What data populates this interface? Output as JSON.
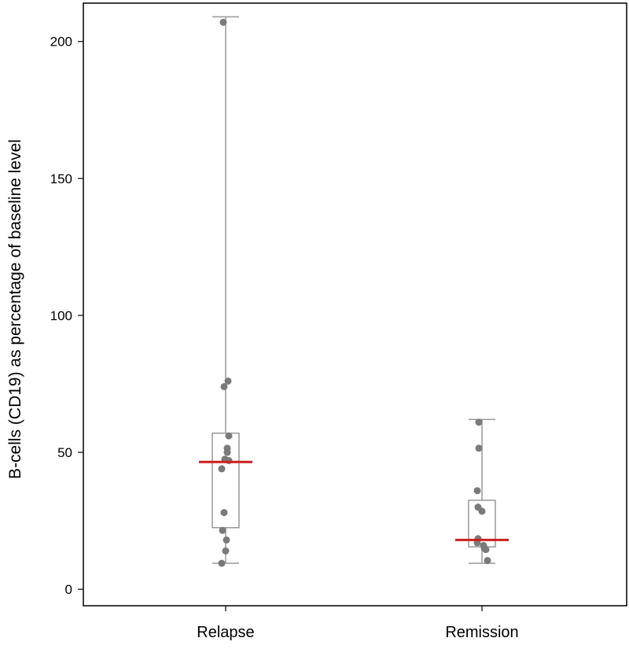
{
  "chart_data": {
    "type": "box",
    "title": "",
    "xlabel": "",
    "ylabel": "B-cells (CD19) as percentage of baseline level",
    "ylim": [
      -6,
      214
    ],
    "yticks": [
      0,
      50,
      100,
      150,
      200
    ],
    "categories": [
      "Relapse",
      "Remission"
    ],
    "boxes": [
      {
        "name": "Relapse",
        "whisker_low": 9.5,
        "q1": 22.5,
        "median": 46.5,
        "q3": 57,
        "whisker_high": 209
      },
      {
        "name": "Remission",
        "whisker_low": 9.5,
        "q1": 15.5,
        "median": 18,
        "q3": 32.5,
        "whisker_high": 62
      }
    ],
    "points": [
      {
        "group": "Relapse",
        "y": 207,
        "jitter": -0.03
      },
      {
        "group": "Relapse",
        "y": 76,
        "jitter": 0.03
      },
      {
        "group": "Relapse",
        "y": 74,
        "jitter": -0.02
      },
      {
        "group": "Relapse",
        "y": 56,
        "jitter": 0.04
      },
      {
        "group": "Relapse",
        "y": 51.5,
        "jitter": 0.02
      },
      {
        "group": "Relapse",
        "y": 50,
        "jitter": 0.02
      },
      {
        "group": "Relapse",
        "y": 47.5,
        "jitter": -0.01
      },
      {
        "group": "Relapse",
        "y": 47,
        "jitter": 0.04
      },
      {
        "group": "Relapse",
        "y": 44,
        "jitter": -0.05
      },
      {
        "group": "Relapse",
        "y": 28,
        "jitter": -0.02
      },
      {
        "group": "Relapse",
        "y": 21.5,
        "jitter": -0.04
      },
      {
        "group": "Relapse",
        "y": 18,
        "jitter": 0.01
      },
      {
        "group": "Relapse",
        "y": 14,
        "jitter": 0.0
      },
      {
        "group": "Relapse",
        "y": 9.5,
        "jitter": -0.05
      },
      {
        "group": "Remission",
        "y": 61,
        "jitter": -0.04
      },
      {
        "group": "Remission",
        "y": 51.5,
        "jitter": -0.04
      },
      {
        "group": "Remission",
        "y": 36,
        "jitter": -0.06
      },
      {
        "group": "Remission",
        "y": 30,
        "jitter": -0.05
      },
      {
        "group": "Remission",
        "y": 28.5,
        "jitter": 0.0
      },
      {
        "group": "Remission",
        "y": 18.5,
        "jitter": -0.05
      },
      {
        "group": "Remission",
        "y": 17,
        "jitter": -0.06
      },
      {
        "group": "Remission",
        "y": 16,
        "jitter": 0.02
      },
      {
        "group": "Remission",
        "y": 15,
        "jitter": 0.03
      },
      {
        "group": "Remission",
        "y": 14.5,
        "jitter": 0.05
      },
      {
        "group": "Remission",
        "y": 10.5,
        "jitter": 0.07
      }
    ],
    "colors": {
      "box": "#999999",
      "median": "#cc1f1f",
      "points": "#7a7a7a",
      "axis": "#000000"
    },
    "grid": false
  }
}
